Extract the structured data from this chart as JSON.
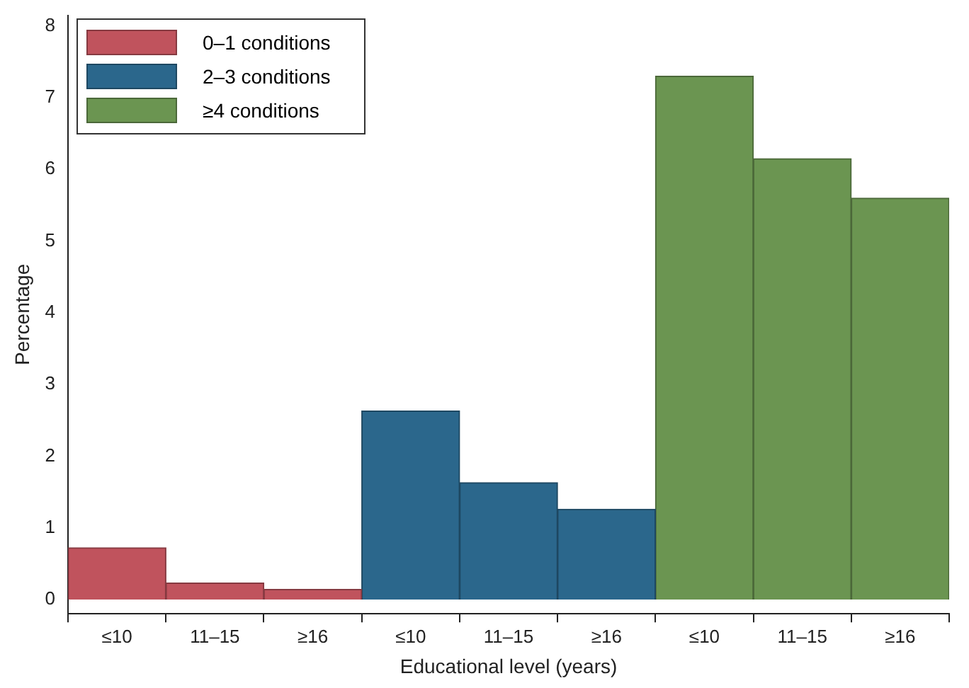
{
  "chart_data": {
    "type": "bar",
    "xlabel": "Educational level (years)",
    "ylabel": "Percentage",
    "categories": [
      "≤10",
      "11–15",
      "≥16",
      "≤10",
      "11–15",
      "≥16",
      "≤10",
      "11–15",
      "≥16"
    ],
    "series": [
      {
        "name": "0–1 conditions",
        "color": "#c0535d",
        "values": [
          0.72,
          0.23,
          0.14,
          null,
          null,
          null,
          null,
          null,
          null
        ]
      },
      {
        "name": "2–3 conditions",
        "color": "#2b678c",
        "values": [
          null,
          null,
          null,
          2.63,
          1.63,
          1.26,
          null,
          null,
          null
        ]
      },
      {
        "name": "≥4 conditions",
        "color": "#6b9551",
        "values": [
          null,
          null,
          null,
          null,
          null,
          null,
          7.3,
          6.15,
          5.6
        ]
      }
    ],
    "ylim": [
      -0.2,
      8.15
    ],
    "yticks": [
      0,
      1,
      2,
      3,
      4,
      5,
      6,
      7,
      8
    ],
    "grid": false,
    "legend": "top left"
  }
}
